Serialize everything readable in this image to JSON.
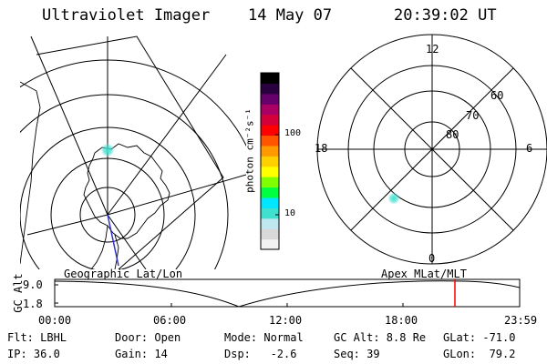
{
  "header": {
    "instrument": "Ultraviolet Imager",
    "date": "14 May 07",
    "time": "20:39:02 UT"
  },
  "left_map": {
    "caption": "Geographic Lat/Lon"
  },
  "colorbar": {
    "unit_label": "photon cm⁻²s⁻¹",
    "ticks": [
      {
        "value": 100,
        "label": "100"
      },
      {
        "value": 10,
        "label": "10"
      }
    ],
    "colors": [
      "#f2f2f2",
      "#d8d8d8",
      "#bfe7ef",
      "#40e0d0",
      "#00e6ff",
      "#00ff40",
      "#7fff00",
      "#ffff00",
      "#ffd000",
      "#ff9900",
      "#ff5500",
      "#ff0000",
      "#d4003a",
      "#aa0066",
      "#66006a",
      "#2a0040",
      "#000000"
    ]
  },
  "right_map": {
    "caption": "Apex MLat/MLT",
    "mlt_labels": {
      "top": "12",
      "bottom": "0",
      "left": "18",
      "right": "6"
    },
    "lat_labels": [
      "60",
      "70",
      "80"
    ]
  },
  "altitude_plot": {
    "ylabel": "GC Alt",
    "y_ticks": [
      "9.0",
      "1.8"
    ],
    "x_ticks": [
      "00:00",
      "06:00",
      "12:00",
      "18:00",
      "23:59"
    ],
    "current_time_marker": "20:39",
    "marker_color": "#ff0000"
  },
  "info_rows": [
    [
      "Flt: LBHL",
      "Door: Open",
      "Mode: Normal",
      "GC Alt: 8.8 Re",
      "GLat: -71.0"
    ],
    [
      "IP: 36.0",
      "Gain: 14",
      "Dsp:   -2.6",
      "Seq: 39",
      "GLon:  79.2"
    ]
  ]
}
